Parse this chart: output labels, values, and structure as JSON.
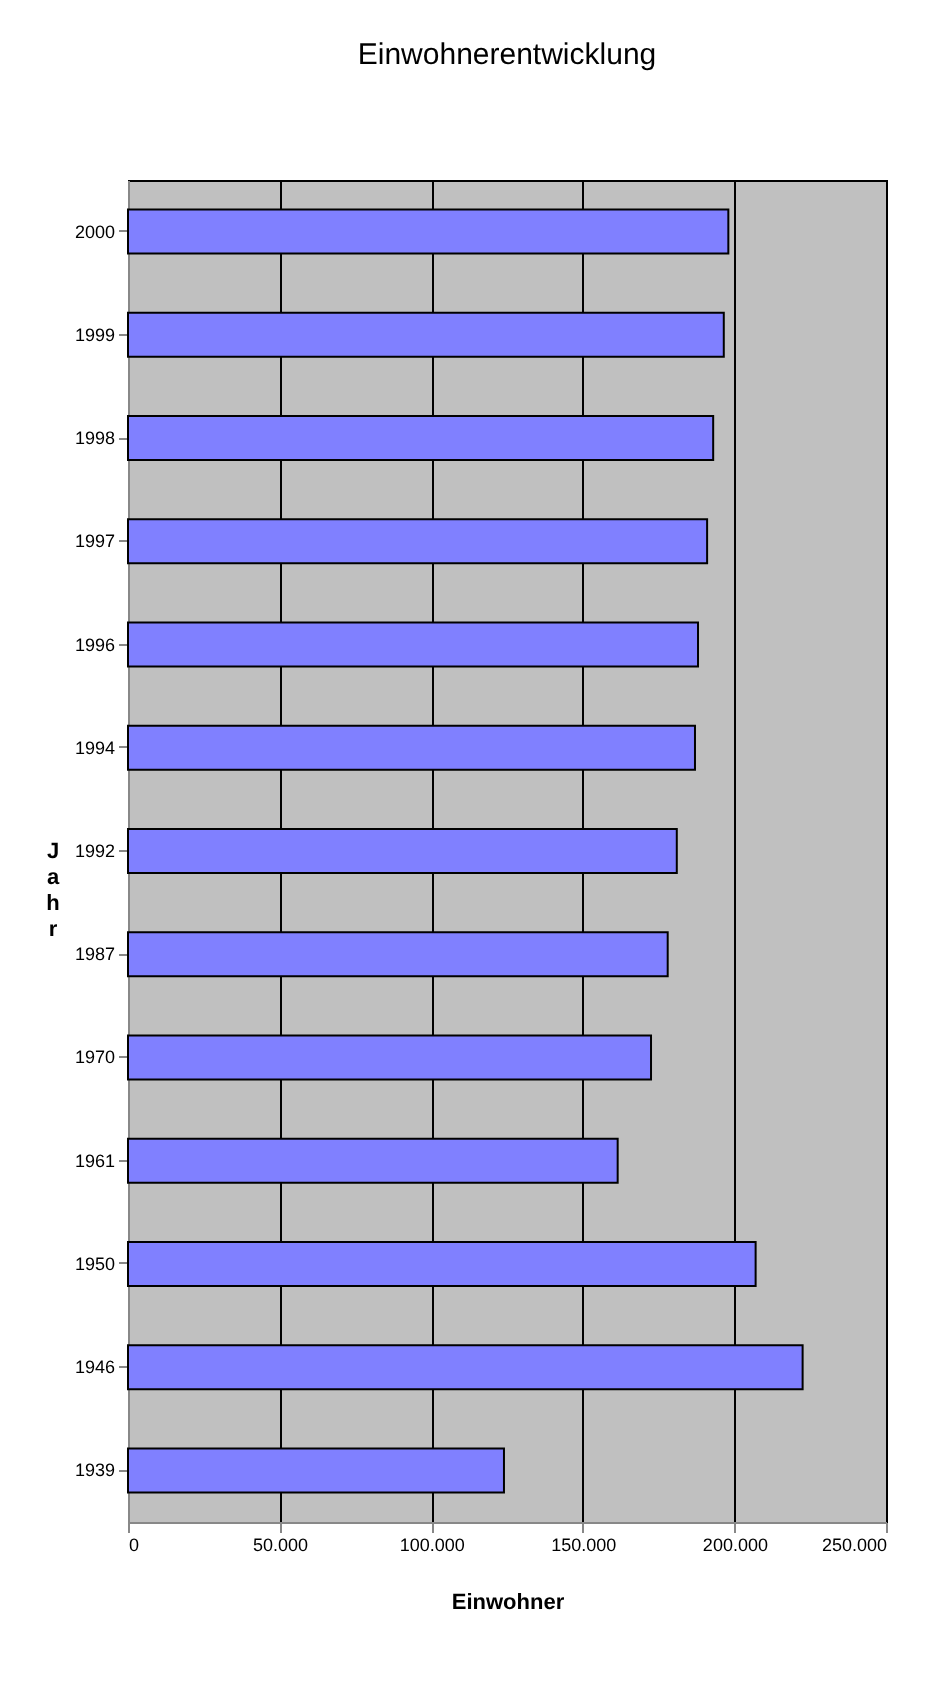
{
  "chart_data": {
    "type": "bar",
    "orientation": "horizontal",
    "title": "Einwohnerentwicklung",
    "xlabel": "Einwohner",
    "ylabel": "Jahr",
    "categories": [
      "2000",
      "1999",
      "1998",
      "1997",
      "1996",
      "1994",
      "1992",
      "1987",
      "1970",
      "1961",
      "1950",
      "1946",
      "1939"
    ],
    "values": [
      198000,
      196500,
      193000,
      191000,
      188000,
      187000,
      181000,
      178000,
      172500,
      161500,
      207000,
      222500,
      124000
    ],
    "color": "#8080ff",
    "xlim": [
      0,
      250000
    ],
    "xticks": [
      0,
      {
        "value": 50000,
        "label": "50.000"
      },
      {
        "value": 100000,
        "label": "100.000"
      },
      {
        "value": 150000,
        "label": "150.000"
      },
      {
        "value": 200000,
        "label": "200.000"
      },
      {
        "value": 250000,
        "label": "250.000"
      }
    ],
    "grid": "x"
  }
}
